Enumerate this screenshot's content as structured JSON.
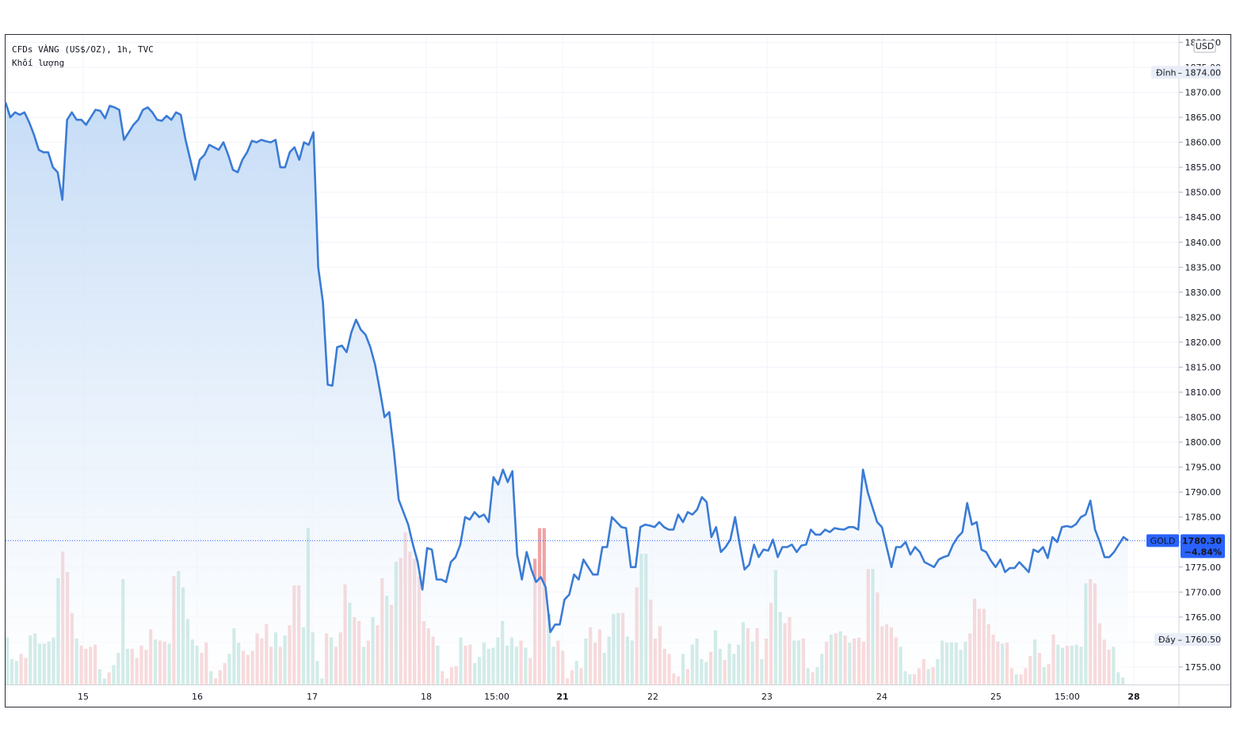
{
  "legend": {
    "symbol_line": "CFDs VÀNG (US$/OZ), 1h, TVC",
    "volume_line": "Khối lượng"
  },
  "currency_label": "USD",
  "markers": {
    "high": {
      "label": "Đỉnh",
      "value": "1874.00"
    },
    "low": {
      "label": "Đáy",
      "value": "1760.50"
    },
    "last": {
      "symbol": "GOLD",
      "value": "1780.30",
      "change": "−4.84%"
    }
  },
  "colors": {
    "line": "#3a7bd5",
    "area_top": "#bcd6f5",
    "area_bottom": "#ffffff",
    "vol_up": "#8fcfc4",
    "vol_down": "#eea4a6",
    "grid": "#f0f3fa",
    "last_badge": "#2962ff"
  },
  "chart_data": {
    "type": "line",
    "title": "CFDs VÀNG (US$/OZ), 1h, TVC",
    "ylim": [
      1751.5,
      1881.5
    ],
    "y_ticks": [
      "1880.00",
      "1875.00",
      "1870.00",
      "1865.00",
      "1860.00",
      "1855.00",
      "1850.00",
      "1845.00",
      "1840.00",
      "1835.00",
      "1830.00",
      "1825.00",
      "1820.00",
      "1815.00",
      "1810.00",
      "1805.00",
      "1800.00",
      "1795.00",
      "1790.00",
      "1785.00",
      "1780.00",
      "1775.00",
      "1770.00",
      "1765.00",
      "1760.00",
      "1755.00"
    ],
    "x_ticks": [
      "15",
      "16",
      "17",
      "18",
      "15:00",
      "21",
      "22",
      "23",
      "24",
      "25",
      "15:00",
      "28"
    ],
    "x_tick_bold": [
      "21",
      "28"
    ],
    "grid": true,
    "series": [
      {
        "type": "line",
        "values": [
          1868,
          1865,
          1866,
          1865.5,
          1866,
          1864,
          1861.5,
          1858.5,
          1858,
          1858,
          1855,
          1854,
          1848.5,
          1864.5,
          1866,
          1864.5,
          1864.5,
          1863.5,
          1865,
          1866.5,
          1866.3,
          1864.8,
          1867.3,
          1867,
          1866.5,
          1860.5,
          1862,
          1863.5,
          1864.5,
          1866.5,
          1867,
          1866,
          1864.5,
          1864.3,
          1865.3,
          1864.5,
          1866,
          1865.5,
          1860.5,
          1856.5,
          1852.5,
          1856.5,
          1857.5,
          1859.5,
          1859,
          1858.5,
          1860,
          1857.5,
          1854.5,
          1854,
          1856.5,
          1858,
          1860.3,
          1860,
          1860.5,
          1860.2,
          1860,
          1860.5,
          1855,
          1855,
          1858,
          1859,
          1856.5,
          1860,
          1859.5,
          1862,
          1835,
          1828,
          1811.5,
          1811.3,
          1819,
          1819.3,
          1818,
          1822,
          1824.5,
          1822.5,
          1821.5,
          1819,
          1815.5,
          1810.5,
          1805,
          1806,
          1798,
          1788.5,
          1786,
          1783.5,
          1779.5,
          1776,
          1770.5,
          1778.8,
          1778.5,
          1772.5,
          1772.5,
          1772,
          1776,
          1777,
          1779.5,
          1785,
          1784.5,
          1786,
          1785,
          1785.5,
          1784,
          1793,
          1791.5,
          1794.5,
          1792,
          1794.2,
          1777.5,
          1772.5,
          1778,
          1774.5,
          1772,
          1773,
          1771,
          1762,
          1763.5,
          1763.5,
          1768.5,
          1769.5,
          1773.5,
          1772.5,
          1776.5,
          1775,
          1773.5,
          1773.5,
          1779,
          1779,
          1785,
          1784,
          1783,
          1782.8,
          1775,
          1775,
          1783,
          1783.5,
          1783.3,
          1783,
          1784,
          1783,
          1782.5,
          1782.5,
          1785.5,
          1784,
          1786,
          1785.5,
          1786.5,
          1789,
          1788,
          1781,
          1783,
          1778,
          1779,
          1780.5,
          1785,
          1779.5,
          1774.5,
          1775.5,
          1779.5,
          1777,
          1778.5,
          1778.3,
          1780.5,
          1777,
          1779,
          1779,
          1779.5,
          1778,
          1779.3,
          1779.5,
          1782.5,
          1781.5,
          1781.5,
          1782.5,
          1782,
          1782.8,
          1782.6,
          1782.5,
          1783,
          1783,
          1782.5,
          1794.5,
          1790,
          1787,
          1784,
          1783,
          1779,
          1775,
          1779,
          1779,
          1780,
          1777.5,
          1779,
          1778,
          1776,
          1775.5,
          1775,
          1776.5,
          1777,
          1777.3,
          1779.5,
          1781,
          1782,
          1787.8,
          1783.5,
          1784,
          1778.5,
          1778,
          1776.3,
          1775,
          1776.5,
          1774,
          1774.8,
          1774.8,
          1776,
          1775,
          1774,
          1778.5,
          1778,
          1779,
          1776.8,
          1781,
          1780,
          1783,
          1783.2,
          1783,
          1783.6,
          1785,
          1785.5,
          1788.3,
          1782.5,
          1780,
          1777,
          1777,
          1778,
          1779.5,
          1781,
          1780.3
        ]
      },
      {
        "type": "volume",
        "values": [
          [
            4.6,
            1
          ],
          [
            2.5,
            1
          ],
          [
            2.3,
            1
          ],
          [
            3.0,
            0
          ],
          [
            2.6,
            0
          ],
          [
            4.8,
            1
          ],
          [
            5.0,
            1
          ],
          [
            4.0,
            1
          ],
          [
            4.0,
            1
          ],
          [
            4.2,
            1
          ],
          [
            4.6,
            1
          ],
          [
            10.4,
            1
          ],
          [
            13.0,
            0
          ],
          [
            11.0,
            0
          ],
          [
            7.0,
            0
          ],
          [
            4.5,
            1
          ],
          [
            3.8,
            0
          ],
          [
            3.5,
            0
          ],
          [
            3.7,
            0
          ],
          [
            3.9,
            0
          ],
          [
            1.5,
            1
          ],
          [
            0.6,
            1
          ],
          [
            1.2,
            0
          ],
          [
            1.9,
            1
          ],
          [
            3.1,
            1
          ],
          [
            10.3,
            1
          ],
          [
            3.5,
            1
          ],
          [
            3.5,
            0
          ],
          [
            2.6,
            0
          ],
          [
            3.8,
            0
          ],
          [
            3.4,
            0
          ],
          [
            5.4,
            0
          ],
          [
            4.4,
            1
          ],
          [
            4.3,
            0
          ],
          [
            4.2,
            0
          ],
          [
            4.0,
            1
          ],
          [
            10.6,
            0
          ],
          [
            11.1,
            1
          ],
          [
            9.5,
            1
          ],
          [
            6.4,
            1
          ],
          [
            4.4,
            1
          ],
          [
            3.8,
            1
          ],
          [
            3.1,
            0
          ],
          [
            4.1,
            0
          ],
          [
            1.3,
            1
          ],
          [
            0.6,
            0
          ],
          [
            1.4,
            0
          ],
          [
            2.1,
            0
          ],
          [
            3.0,
            1
          ],
          [
            5.5,
            1
          ],
          [
            4.1,
            1
          ],
          [
            3.3,
            0
          ],
          [
            2.9,
            0
          ],
          [
            3.3,
            0
          ],
          [
            5.0,
            0
          ],
          [
            4.5,
            0
          ],
          [
            5.9,
            0
          ],
          [
            3.7,
            0
          ],
          [
            5.1,
            1
          ],
          [
            3.7,
            0
          ],
          [
            4.8,
            1
          ],
          [
            5.8,
            0
          ],
          [
            9.7,
            0
          ],
          [
            9.7,
            0
          ],
          [
            5.6,
            1
          ],
          [
            15.3,
            1
          ],
          [
            5.1,
            1
          ],
          [
            2.3,
            1
          ],
          [
            0.6,
            1
          ],
          [
            5.0,
            0
          ],
          [
            4.6,
            1
          ],
          [
            3.7,
            0
          ],
          [
            5.1,
            0
          ],
          [
            9.8,
            0
          ],
          [
            8.0,
            1
          ],
          [
            6.6,
            0
          ],
          [
            6.2,
            0
          ],
          [
            3.7,
            1
          ],
          [
            4.3,
            0
          ],
          [
            6.6,
            1
          ],
          [
            5.8,
            0
          ],
          [
            10.4,
            0
          ],
          [
            8.7,
            1
          ],
          [
            7.8,
            0
          ],
          [
            12.0,
            1
          ],
          [
            12.4,
            0
          ],
          [
            14.9,
            0
          ],
          [
            13.0,
            0
          ],
          [
            12.3,
            0
          ],
          [
            10.6,
            0
          ],
          [
            6.2,
            0
          ],
          [
            5.5,
            0
          ],
          [
            4.7,
            0
          ],
          [
            3.8,
            1
          ],
          [
            1.3,
            0
          ],
          [
            0.6,
            0
          ],
          [
            1.7,
            0
          ],
          [
            1.8,
            0
          ],
          [
            4.6,
            1
          ],
          [
            3.8,
            0
          ],
          [
            3.9,
            0
          ],
          [
            2.1,
            1
          ],
          [
            2.7,
            1
          ],
          [
            4.1,
            1
          ],
          [
            3.5,
            1
          ],
          [
            3.6,
            1
          ],
          [
            4.6,
            1
          ],
          [
            6.2,
            1
          ],
          [
            3.8,
            1
          ],
          [
            4.6,
            1
          ],
          [
            3.7,
            1
          ],
          [
            4.3,
            0
          ],
          [
            3.6,
            1
          ],
          [
            2.6,
            0
          ],
          [
            12.3,
            0
          ],
          [
            15.3,
            0
          ],
          [
            15.3,
            0
          ],
          [
            6.9,
            1
          ],
          [
            3.7,
            1
          ],
          [
            4.3,
            0
          ],
          [
            3.3,
            0
          ],
          [
            0.6,
            0
          ],
          [
            1.4,
            0
          ],
          [
            2.3,
            1
          ],
          [
            1.6,
            0
          ],
          [
            4.5,
            1
          ],
          [
            5.6,
            0
          ],
          [
            4.1,
            0
          ],
          [
            5.4,
            0
          ],
          [
            3.1,
            1
          ],
          [
            4.7,
            1
          ],
          [
            6.9,
            1
          ],
          [
            7.0,
            1
          ],
          [
            7.0,
            0
          ],
          [
            4.7,
            1
          ],
          [
            4.3,
            1
          ],
          [
            9.5,
            0
          ],
          [
            12.8,
            1
          ],
          [
            12.8,
            1
          ],
          [
            8.3,
            0
          ],
          [
            4.5,
            0
          ],
          [
            5.7,
            0
          ],
          [
            3.5,
            0
          ],
          [
            3.0,
            0
          ],
          [
            1.1,
            0
          ],
          [
            0.8,
            0
          ],
          [
            3.0,
            1
          ],
          [
            1.5,
            0
          ],
          [
            3.9,
            1
          ],
          [
            4.5,
            1
          ],
          [
            2.5,
            1
          ],
          [
            2.2,
            1
          ],
          [
            3.2,
            0
          ],
          [
            5.3,
            1
          ],
          [
            3.5,
            1
          ],
          [
            2.4,
            0
          ],
          [
            4.0,
            1
          ],
          [
            3.0,
            1
          ],
          [
            3.9,
            1
          ],
          [
            6.1,
            1
          ],
          [
            5.5,
            0
          ],
          [
            4.2,
            1
          ],
          [
            5.5,
            0
          ],
          [
            2.5,
            1
          ],
          [
            4.5,
            0
          ],
          [
            8.0,
            0
          ],
          [
            11.2,
            1
          ],
          [
            7.1,
            1
          ],
          [
            6.0,
            0
          ],
          [
            6.6,
            0
          ],
          [
            4.3,
            1
          ],
          [
            4.3,
            1
          ],
          [
            4.5,
            0
          ],
          [
            1.6,
            1
          ],
          [
            1.2,
            0
          ],
          [
            1.7,
            1
          ],
          [
            3.0,
            1
          ],
          [
            4.2,
            0
          ],
          [
            4.9,
            1
          ],
          [
            5.0,
            0
          ],
          [
            5.2,
            1
          ],
          [
            4.8,
            0
          ],
          [
            4.1,
            1
          ],
          [
            4.5,
            0
          ],
          [
            4.6,
            0
          ],
          [
            4.2,
            0
          ],
          [
            11.3,
            0
          ],
          [
            11.3,
            1
          ],
          [
            9.0,
            0
          ],
          [
            5.7,
            0
          ],
          [
            5.9,
            0
          ],
          [
            5.6,
            0
          ],
          [
            4.6,
            0
          ],
          [
            3.7,
            1
          ],
          [
            1.3,
            1
          ],
          [
            1.0,
            1
          ],
          [
            1.0,
            0
          ],
          [
            1.6,
            0
          ],
          [
            2.5,
            0
          ],
          [
            1.5,
            1
          ],
          [
            1.7,
            0
          ],
          [
            2.5,
            1
          ],
          [
            4.3,
            1
          ],
          [
            4.1,
            1
          ],
          [
            4.1,
            1
          ],
          [
            4.1,
            1
          ],
          [
            3.4,
            1
          ],
          [
            4.2,
            1
          ],
          [
            5.0,
            0
          ],
          [
            8.4,
            0
          ],
          [
            7.4,
            0
          ],
          [
            7.4,
            0
          ],
          [
            5.9,
            0
          ],
          [
            4.9,
            0
          ],
          [
            4.2,
            0
          ],
          [
            4.0,
            1
          ],
          [
            4.1,
            0
          ],
          [
            1.6,
            0
          ],
          [
            1.0,
            1
          ],
          [
            1.0,
            0
          ],
          [
            1.6,
            0
          ],
          [
            2.8,
            0
          ],
          [
            4.4,
            1
          ],
          [
            3.1,
            0
          ],
          [
            1.7,
            1
          ],
          [
            2.0,
            0
          ],
          [
            4.9,
            0
          ],
          [
            3.9,
            1
          ],
          [
            3.6,
            1
          ],
          [
            3.8,
            0
          ],
          [
            3.8,
            1
          ],
          [
            3.9,
            1
          ],
          [
            3.7,
            1
          ],
          [
            9.9,
            1
          ],
          [
            10.3,
            0
          ],
          [
            9.9,
            0
          ],
          [
            6.0,
            0
          ],
          [
            4.4,
            0
          ],
          [
            3.4,
            0
          ],
          [
            3.7,
            1
          ],
          [
            1.2,
            1
          ],
          [
            0.7,
            1
          ]
        ]
      }
    ]
  }
}
